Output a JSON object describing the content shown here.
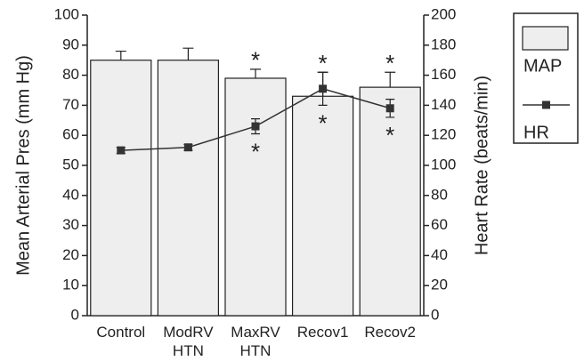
{
  "chart_data": {
    "type": "bar-line",
    "categories": [
      [
        "Control"
      ],
      [
        "ModRV",
        "HTN"
      ],
      [
        "MaxRV",
        "HTN"
      ],
      [
        "Recov1"
      ],
      [
        "Recov2"
      ]
    ],
    "y_label": "Mean Arterial Pres (mm Hg)",
    "y2_label": "Heart Rate (beats/min)",
    "ylim": [
      0,
      100
    ],
    "yticks": [
      0,
      10,
      20,
      30,
      40,
      50,
      60,
      70,
      80,
      90,
      100
    ],
    "y2lim": [
      0,
      200
    ],
    "y2ticks": [
      0,
      20,
      40,
      60,
      80,
      100,
      120,
      140,
      160,
      180,
      200
    ],
    "series": [
      {
        "name": "MAP",
        "type": "bar",
        "color": "#eeeeee",
        "values": [
          85,
          85,
          79,
          73,
          76
        ],
        "errors": [
          3,
          4,
          3,
          8,
          5
        ],
        "significance": [
          null,
          null,
          "*",
          "*",
          "*"
        ]
      },
      {
        "name": "HR",
        "type": "line",
        "axis": "y2",
        "color": "#333333",
        "values": [
          110,
          112,
          126,
          151,
          138
        ],
        "errors": [
          2,
          2,
          5,
          11,
          6
        ],
        "significance": [
          null,
          null,
          "*",
          "*",
          "*"
        ]
      }
    ]
  }
}
